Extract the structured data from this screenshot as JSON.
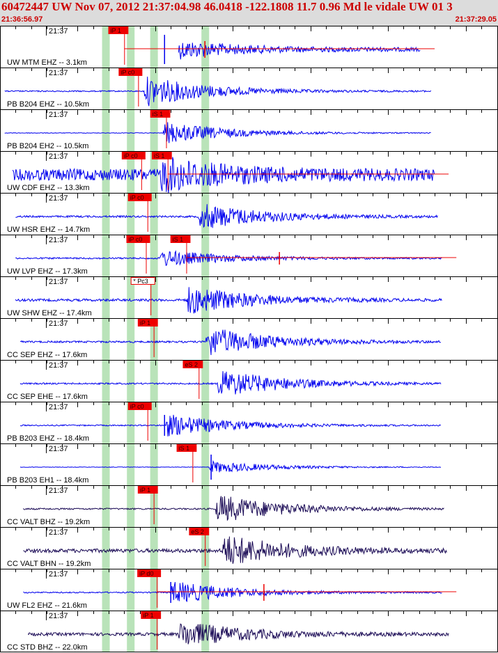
{
  "header": {
    "title": "60472447 UW Nov 07, 2012 21:37:04.98    46.0418 -122.1808 11.7 0.96 Md le vidale UW 01    3",
    "start_time": "21:36:56.97",
    "end_time": "21:37:29.05"
  },
  "colors": {
    "trace_blue": "#0000ee",
    "trace_dark": "#1a0a55",
    "pick_red": "#ee0000",
    "band_green": "#b9e3b9",
    "axis": "#000000"
  },
  "window": {
    "start_s": 0,
    "end_s": 32.08
  },
  "bands_s": [
    6.8,
    8.4,
    9.9,
    13.2
  ],
  "traces": [
    {
      "time": "21:37",
      "label": "UW MTM EHZ -- 3.1km",
      "color": "blue",
      "start": 11.5,
      "end": 27.1,
      "onset": 9.1,
      "amp": 1.0,
      "noise": 0.12,
      "model": 1,
      "picks": [
        {
          "label": "iP 1",
          "t": 8.0,
          "filled": true
        }
      ],
      "spikes": [
        {
          "t": 10.6,
          "w": 3.5,
          "marker": false
        },
        {
          "t": 13.2,
          "w": 2.0,
          "marker": true
        }
      ]
    },
    {
      "time": "21:37",
      "label": "PB B204 EHZ -- 10.5km",
      "color": "blue",
      "start": 0.3,
      "end": 27.8,
      "onset": 9.3,
      "amp": 1.0,
      "noise": 0.04,
      "model": 0,
      "picks": [
        {
          "label": "iP c0",
          "t": 8.9,
          "filled": true
        }
      ],
      "spikes": []
    },
    {
      "time": "21:37",
      "label": "PB B204 EH2 -- 10.5km",
      "color": "blue",
      "start": 0.3,
      "end": 27.8,
      "onset": 10.5,
      "amp": 0.75,
      "noise": 0.02,
      "model": 0,
      "picks": [
        {
          "label": "iS 1",
          "t": 10.7,
          "filled": true
        }
      ],
      "spikes": []
    },
    {
      "time": "21:37",
      "label": "UW CDF EHZ -- 13.3km",
      "color": "blue",
      "start": 0.8,
      "end": 28.0,
      "onset": 10.3,
      "amp": 1.0,
      "noise": 0.38,
      "model": 1,
      "picks": [
        {
          "label": "iP c0",
          "t": 9.1,
          "filled": true
        },
        {
          "label": "iS 1",
          "t": 10.8,
          "filled": true
        }
      ],
      "spikes": []
    },
    {
      "time": "21:37",
      "label": "UW HSR EHZ -- 14.7km",
      "color": "blue",
      "start": 1.0,
      "end": 28.2,
      "onset": 12.8,
      "amp": 0.9,
      "noise": 0.06,
      "model": 0,
      "picks": [
        {
          "label": "iP c0",
          "t": 9.5,
          "filled": true
        }
      ],
      "spikes": []
    },
    {
      "time": "21:37",
      "label": "UW LVP EHZ -- 17.3km",
      "color": "blue",
      "start": 1.0,
      "end": 28.5,
      "onset": 10.3,
      "amp": 0.55,
      "noise": 0.05,
      "model": 1,
      "picks": [
        {
          "label": "iP c0",
          "t": 9.4,
          "filled": true
        },
        {
          "label": "iS 1",
          "t": 12.0,
          "filled": true
        }
      ],
      "spikes": [
        {
          "t": 18.0,
          "w": 1.5,
          "marker": true
        }
      ]
    },
    {
      "time": "21:37",
      "label": "UW SHW EHZ -- 17.4km",
      "color": "blue",
      "start": 1.0,
      "end": 28.5,
      "onset": 12.0,
      "amp": 0.95,
      "noise": 0.08,
      "model": 0,
      "picks": [
        {
          "label": "* Pc3",
          "t": 9.7,
          "filled": false
        }
      ],
      "spikes": []
    },
    {
      "time": "21:37",
      "label": "CC SEP EHZ -- 17.6km",
      "color": "blue",
      "start": 1.3,
      "end": 28.4,
      "onset": 13.2,
      "amp": 1.0,
      "noise": 0.06,
      "model": 0,
      "picks": [
        {
          "label": "iP 1",
          "t": 9.9,
          "filled": true
        }
      ],
      "spikes": []
    },
    {
      "time": "21:37",
      "label": "CC SEP EHE -- 17.6km",
      "color": "blue",
      "start": 1.3,
      "end": 28.4,
      "onset": 14.0,
      "amp": 0.95,
      "noise": 0.05,
      "model": 0,
      "picks": [
        {
          "label": "eS 2",
          "t": 12.8,
          "filled": true
        }
      ],
      "spikes": []
    },
    {
      "time": "21:37",
      "label": "PB B203 EHZ -- 18.4km",
      "color": "blue",
      "start": 1.3,
      "end": 28.4,
      "onset": 10.6,
      "amp": 0.75,
      "noise": 0.04,
      "model": 0,
      "picks": [
        {
          "label": "iP c0",
          "t": 9.5,
          "filled": true
        }
      ],
      "spikes": [
        {
          "t": 10.6,
          "w": 2.5,
          "marker": false
        }
      ]
    },
    {
      "time": "21:37",
      "label": "PB B203 EH1 -- 18.4km",
      "color": "blue",
      "start": 1.3,
      "end": 28.4,
      "onset": 13.5,
      "amp": 0.4,
      "noise": 0.015,
      "model": 0,
      "picks": [
        {
          "label": "iS 1",
          "t": 12.4,
          "filled": true
        }
      ],
      "spikes": [
        {
          "t": 13.6,
          "w": 3.0,
          "marker": false
        }
      ]
    },
    {
      "time": "21:37",
      "label": "CC VALT BHZ -- 19.2km",
      "color": "dark",
      "start": 1.5,
      "end": 28.6,
      "onset": 13.9,
      "amp": 0.95,
      "noise": 0.05,
      "model": 0,
      "picks": [
        {
          "label": "iP 1",
          "t": 9.9,
          "filled": true
        }
      ],
      "spikes": []
    },
    {
      "time": "21:37",
      "label": "CC VALT BHN -- 19.2km",
      "color": "dark",
      "start": 1.5,
      "end": 28.8,
      "onset": 14.3,
      "amp": 1.05,
      "noise": 0.12,
      "model": 0,
      "picks": [
        {
          "label": "eS 2",
          "t": 13.2,
          "filled": true
        }
      ],
      "spikes": []
    },
    {
      "time": "21:37",
      "label": "UW FL2 EHZ -- 21.6km",
      "color": "blue",
      "start": 1.5,
      "end": 28.5,
      "onset": 11.0,
      "amp": 0.75,
      "noise": 0.04,
      "model": 1,
      "picks": [
        {
          "label": "iP d0",
          "t": 10.1,
          "filled": true
        }
      ],
      "spikes": [
        {
          "t": 11.0,
          "w": 2.5,
          "marker": false
        },
        {
          "t": 17.0,
          "w": 2.0,
          "marker": true
        }
      ]
    },
    {
      "time": "21:37",
      "label": "CC STD BHZ -- 22.0km",
      "color": "dark",
      "start": 1.8,
      "end": 28.9,
      "onset": 11.5,
      "amp": 0.85,
      "noise": 0.1,
      "model": 0,
      "picks": [
        {
          "label": "iP 1",
          "t": 10.1,
          "filled": true
        }
      ],
      "spikes": []
    }
  ]
}
